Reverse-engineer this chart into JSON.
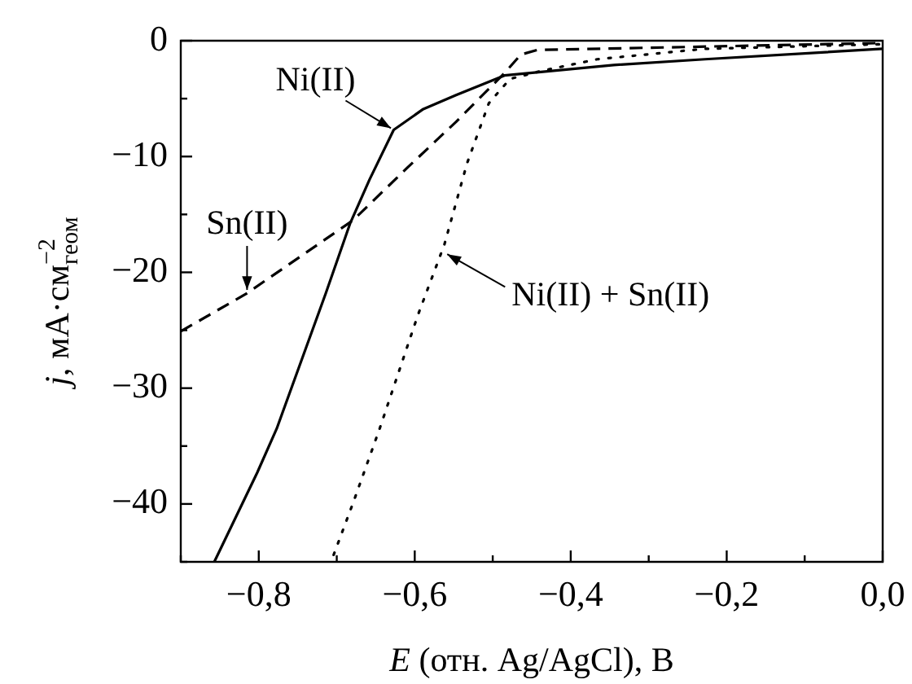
{
  "chart_data": {
    "type": "line",
    "xlabel": "E (отн. Ag/AgCl), В",
    "ylabel": "j, мА·см$^{−2}$$_{геом}$",
    "xlim": [
      -0.9,
      0
    ],
    "ylim": [
      -45,
      0
    ],
    "xticks": [
      {
        "value": -0.9,
        "label": null
      },
      {
        "value": -0.8,
        "label": "−0,8"
      },
      {
        "value": -0.7,
        "label": null
      },
      {
        "value": -0.6,
        "label": "−0,6"
      },
      {
        "value": -0.5,
        "label": null
      },
      {
        "value": -0.4,
        "label": "−0,4"
      },
      {
        "value": -0.3,
        "label": null
      },
      {
        "value": -0.2,
        "label": "−0,2"
      },
      {
        "value": -0.1,
        "label": null
      },
      {
        "value": 0,
        "label": "0,0"
      }
    ],
    "yticks": [
      {
        "value": -45,
        "label": null
      },
      {
        "value": -40,
        "label": "−40"
      },
      {
        "value": -35,
        "label": null
      },
      {
        "value": -30,
        "label": "−30"
      },
      {
        "value": -25,
        "label": null
      },
      {
        "value": -20,
        "label": "−20"
      },
      {
        "value": -15,
        "label": null
      },
      {
        "value": -10,
        "label": "−10"
      },
      {
        "value": -5,
        "label": null
      },
      0
    ],
    "grid": false,
    "legend": false,
    "marker": "none",
    "series": [
      {
        "color": "#000000",
        "line_style": "solid",
        "x": [
          -0.857,
          -0.802,
          -0.777,
          -0.714,
          -0.683,
          -0.658,
          -0.627,
          -0.589,
          -0.547,
          -0.485,
          -0.345,
          -0.228,
          0
        ],
        "values": [
          -45,
          -37.3,
          -33.5,
          -21.8,
          -15.8,
          -12,
          -7.7,
          -5.9,
          -4.7,
          -3.0,
          -2.1,
          -1.6,
          -0.7
        ]
      },
      {
        "color": "#000000",
        "line_style": "dashed",
        "x": [
          -0.9,
          -0.815,
          -0.679,
          -0.61,
          -0.547,
          -0.485,
          -0.464,
          -0.443,
          0
        ],
        "values": [
          -25.1,
          -21.8,
          -15.5,
          -11,
          -7,
          -2.8,
          -1.2,
          -0.8,
          -0.2
        ]
      },
      {
        "color": "#000000",
        "line_style": "dotted",
        "x": [
          -0.704,
          -0.679,
          -0.645,
          -0.596,
          -0.562,
          -0.533,
          -0.505,
          -0.478,
          -0.437,
          -0.366,
          -0.228,
          0
        ],
        "values": [
          -44.4,
          -39.9,
          -33.5,
          -23.7,
          -17.6,
          -10.6,
          -5.4,
          -3.3,
          -2.6,
          -1.6,
          -0.7,
          -0.3
        ]
      }
    ],
    "annotations": [
      {
        "text": "Ni(II)",
        "x": -0.627,
        "y": -7.7
      },
      {
        "text": "Sn(II)",
        "x": -0.815,
        "y": -21.8
      },
      {
        "text": "Ni(II) + Sn(II)",
        "x": -0.562,
        "y": -18.3
      }
    ]
  }
}
